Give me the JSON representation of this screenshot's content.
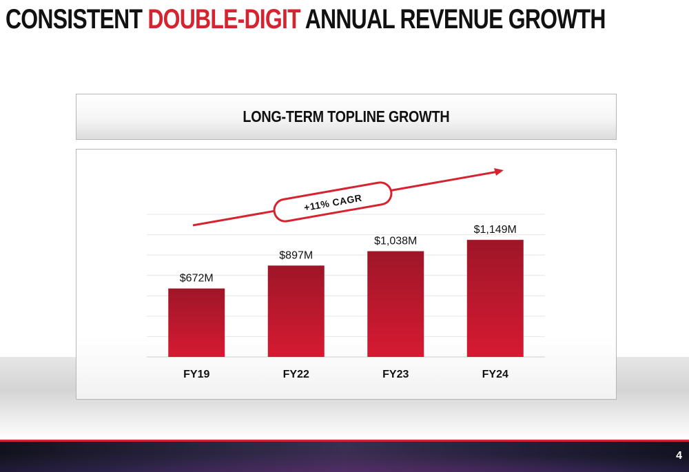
{
  "title": {
    "part1": "CONSISTENT ",
    "accent": "DOUBLE-DIGIT",
    "part2": " ANNUAL REVENUE GROWTH"
  },
  "subtitle": "LONG-TERM TOPLINE GROWTH",
  "cagr_label": "+11% CAGR",
  "page_number": "4",
  "colors": {
    "accent": "#d52430",
    "bar_top": "#9e1628",
    "bar_bottom": "#d61a32",
    "title_text": "#111111"
  },
  "chart_data": {
    "type": "bar",
    "categories": [
      "FY19",
      "FY22",
      "FY23",
      "FY24"
    ],
    "values": [
      672,
      897,
      1038,
      1149
    ],
    "data_labels": [
      "$672M",
      "$897M",
      "$1,038M",
      "$1,149M"
    ],
    "ylim": [
      0,
      1400
    ],
    "grid": true,
    "title": "LONG-TERM TOPLINE GROWTH",
    "xlabel": "",
    "ylabel": "",
    "annotation": "+11% CAGR"
  }
}
